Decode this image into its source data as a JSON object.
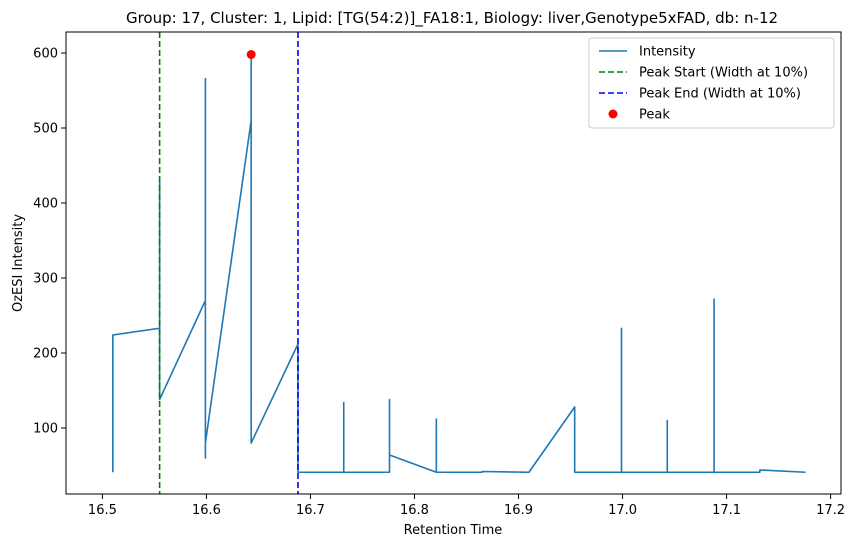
{
  "chart_data": {
    "type": "line",
    "title": "Group: 17, Cluster: 1, Lipid: [TG(54:2)]_FA18:1, Biology: liver,Genotype5xFAD, db: n-12",
    "xlabel": "Retention Time",
    "ylabel": "OzESI Intensity",
    "xlim": [
      16.465,
      17.21
    ],
    "ylim": [
      12,
      628
    ],
    "x_ticks": [
      16.5,
      16.6,
      16.7,
      16.8,
      16.9,
      17.0,
      17.1,
      17.2
    ],
    "x_tick_labels": [
      "16.5",
      "16.6",
      "16.7",
      "16.8",
      "16.9",
      "17.0",
      "17.1",
      "17.2"
    ],
    "y_ticks": [
      100,
      200,
      300,
      400,
      500,
      600
    ],
    "y_tick_labels": [
      "100",
      "200",
      "300",
      "400",
      "500",
      "600"
    ],
    "grid": false,
    "legend_position": "top-right",
    "series": [
      {
        "name": "Intensity",
        "kind": "line",
        "color": "#1f77b4",
        "x": [
          16.51,
          16.51,
          16.555,
          16.555,
          16.555,
          16.599,
          16.599,
          16.599,
          16.599,
          16.643,
          16.643,
          16.643,
          16.688,
          16.688,
          16.732,
          16.732,
          16.732,
          16.776,
          16.776,
          16.776,
          16.821,
          16.821,
          16.821,
          16.865,
          16.865,
          16.91,
          16.954,
          16.954,
          16.999,
          16.999,
          16.999,
          17.043,
          17.043,
          17.043,
          17.088,
          17.088,
          17.088,
          17.132,
          17.132,
          17.176
        ],
        "y": [
          41,
          224,
          233,
          430,
          138,
          270,
          566,
          60,
          80,
          510,
          598,
          80,
          212,
          41,
          41,
          134,
          41,
          41,
          138,
          64,
          41,
          112,
          41,
          41,
          42,
          41,
          128,
          41,
          41,
          233,
          41,
          41,
          110,
          41,
          41,
          272,
          41,
          41,
          44,
          41
        ]
      },
      {
        "name": "Peak Start (Width at 10%)",
        "kind": "vline",
        "style": "dashed",
        "color": "#008000",
        "x": 16.555
      },
      {
        "name": "Peak End (Width at 10%)",
        "kind": "vline",
        "style": "dashed",
        "color": "#0000ff",
        "x": 16.688
      },
      {
        "name": "Peak",
        "kind": "point",
        "color": "#ff0000",
        "x": 16.643,
        "y": 598
      }
    ]
  }
}
